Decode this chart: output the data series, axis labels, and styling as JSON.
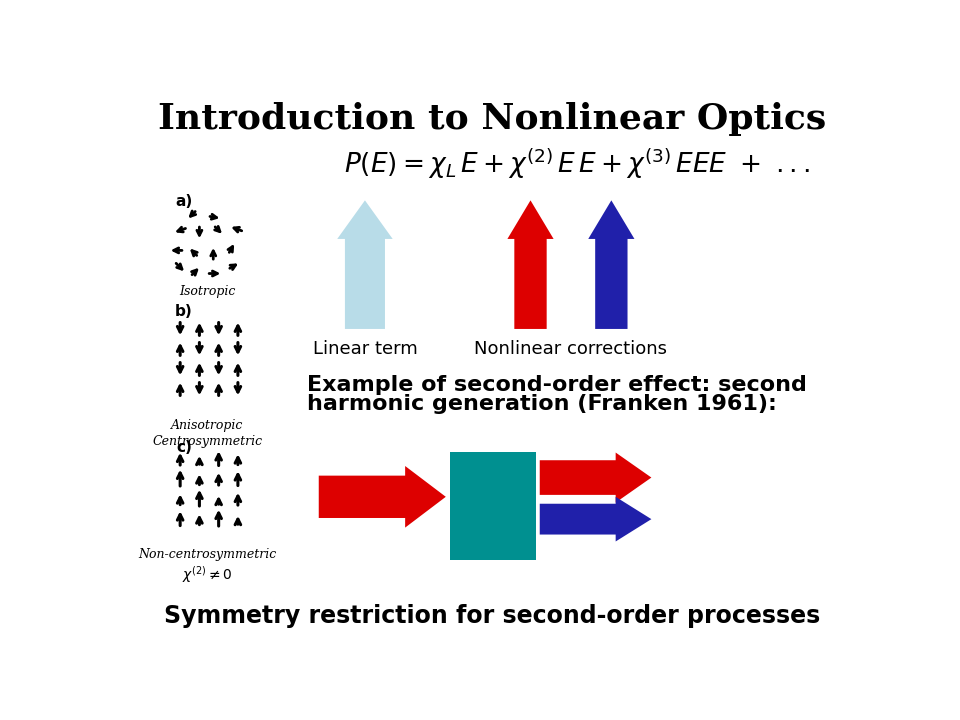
{
  "title": "Introduction to Nonlinear Optics",
  "title_fontsize": 26,
  "title_fontweight": "bold",
  "bg_color": "#ffffff",
  "formula_fontsize": 19,
  "linear_label": "Linear term",
  "nonlinear_label": "Nonlinear corrections",
  "example_text_line1": "Example of second-order effect: second",
  "example_text_line2": "harmonic generation (Franken 1961):",
  "example_fontsize": 16,
  "symmetry_text": "Symmetry restriction for second-order processes",
  "symmetry_fontsize": 17,
  "symmetry_fontweight": "bold",
  "arrow_up_light_color": "#b8dce8",
  "arrow_up_red_color": "#dd0000",
  "arrow_up_blue_color": "#2020aa",
  "arrow_right_red_color": "#dd0000",
  "arrow_right_blue_color": "#2020aa",
  "crystal_color": "#009090",
  "label_fontsize": 13,
  "isotropic_label": "Isotropic",
  "anisotropic_label": "Anisotropic\nCentrosymmetric",
  "noncentro_label": "Non-centrosymmetric",
  "a_label": "a)",
  "b_label": "b)",
  "c_label": "c)"
}
